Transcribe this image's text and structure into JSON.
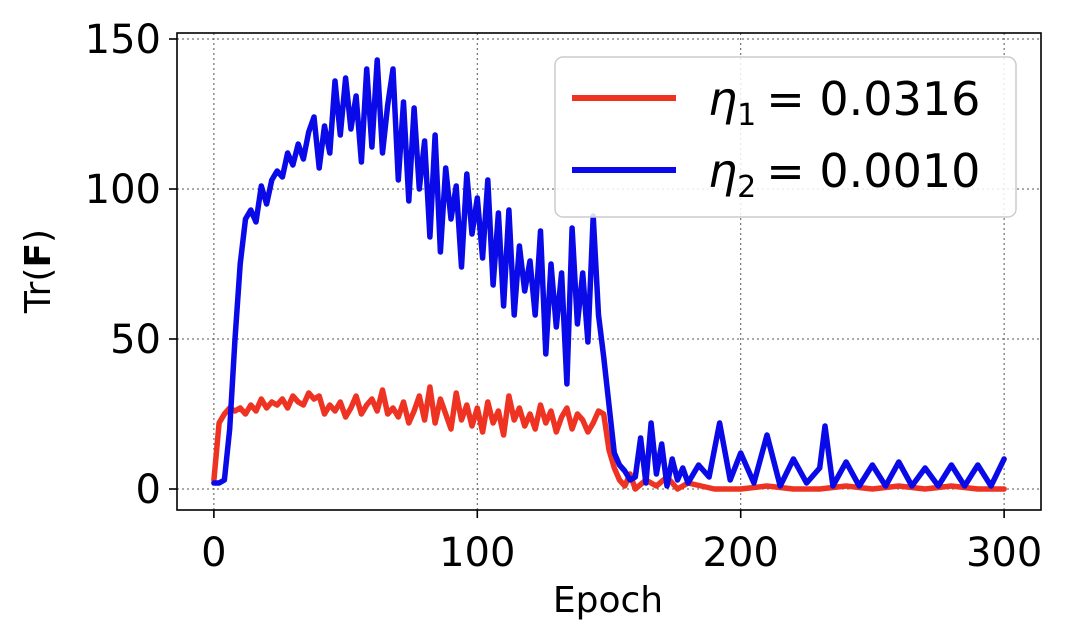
{
  "chart_data": {
    "type": "line",
    "xlabel": "Epoch",
    "ylabel_prefix": "Tr(",
    "ylabel_symbol": "F",
    "ylabel_suffix": ")",
    "xlim": [
      -14,
      314
    ],
    "ylim": [
      -7,
      152
    ],
    "xticks": [
      0,
      100,
      200,
      300
    ],
    "yticks": [
      0,
      50,
      100,
      150
    ],
    "grid": true,
    "legend_position": "top-right",
    "series": [
      {
        "name": "η1 = 0.0316",
        "legend_symbol": "η",
        "legend_sub": "1",
        "legend_value": "= 0.0316",
        "color": "#ee3322",
        "x": [
          0,
          2,
          4,
          6,
          8,
          10,
          12,
          14,
          16,
          18,
          20,
          22,
          24,
          26,
          28,
          30,
          32,
          34,
          36,
          38,
          40,
          42,
          44,
          46,
          48,
          50,
          52,
          54,
          56,
          58,
          60,
          62,
          64,
          66,
          68,
          70,
          72,
          74,
          76,
          78,
          80,
          82,
          84,
          86,
          88,
          90,
          92,
          94,
          96,
          98,
          100,
          102,
          104,
          106,
          108,
          110,
          112,
          114,
          116,
          118,
          120,
          122,
          124,
          126,
          128,
          130,
          132,
          134,
          136,
          138,
          140,
          142,
          144,
          146,
          148,
          150,
          152,
          154,
          156,
          158,
          160,
          164,
          168,
          172,
          176,
          180,
          185,
          190,
          200,
          210,
          220,
          230,
          240,
          250,
          260,
          270,
          280,
          290,
          300
        ],
        "values": [
          3,
          22,
          25,
          27,
          26,
          27,
          25,
          28,
          26,
          30,
          27,
          29,
          28,
          30,
          27,
          31,
          29,
          28,
          32,
          30,
          31,
          25,
          28,
          26,
          29,
          24,
          27,
          31,
          25,
          28,
          30,
          26,
          33,
          25,
          27,
          24,
          29,
          22,
          26,
          31,
          23,
          34,
          22,
          30,
          25,
          20,
          32,
          23,
          28,
          21,
          27,
          19,
          29,
          22,
          26,
          18,
          31,
          23,
          27,
          21,
          25,
          20,
          28,
          22,
          26,
          19,
          24,
          27,
          20,
          25,
          23,
          19,
          22,
          26,
          25,
          13,
          7,
          3,
          1,
          5,
          0,
          3,
          1,
          4,
          0,
          2,
          1,
          0,
          0,
          1,
          0,
          0,
          1,
          0,
          1,
          0,
          1,
          0,
          0
        ]
      },
      {
        "name": "η2 = 0.0010",
        "legend_symbol": "η",
        "legend_sub": "2",
        "legend_value": "= 0.0010",
        "color": "#0a0ae8",
        "x": [
          0,
          2,
          4,
          6,
          8,
          10,
          12,
          14,
          16,
          18,
          20,
          22,
          24,
          26,
          28,
          30,
          32,
          34,
          36,
          38,
          40,
          42,
          44,
          46,
          48,
          50,
          52,
          54,
          56,
          58,
          60,
          62,
          64,
          66,
          68,
          70,
          72,
          74,
          76,
          78,
          80,
          82,
          84,
          86,
          88,
          90,
          92,
          94,
          96,
          98,
          100,
          102,
          104,
          106,
          108,
          110,
          112,
          114,
          116,
          118,
          120,
          122,
          124,
          126,
          128,
          130,
          132,
          134,
          136,
          138,
          140,
          142,
          144,
          146,
          148,
          150,
          152,
          154,
          156,
          158,
          160,
          162,
          164,
          166,
          168,
          170,
          172,
          174,
          176,
          178,
          180,
          184,
          188,
          192,
          196,
          200,
          205,
          210,
          215,
          220,
          225,
          230,
          232,
          235,
          240,
          245,
          250,
          255,
          260,
          265,
          270,
          275,
          280,
          285,
          290,
          295,
          300
        ],
        "values": [
          2,
          2,
          3,
          20,
          50,
          75,
          90,
          93,
          89,
          101,
          95,
          103,
          106,
          104,
          112,
          108,
          115,
          110,
          119,
          124,
          107,
          121,
          112,
          136,
          118,
          137,
          120,
          131,
          109,
          140,
          114,
          143,
          112,
          128,
          140,
          103,
          129,
          96,
          127,
          100,
          116,
          84,
          118,
          79,
          107,
          90,
          101,
          74,
          105,
          85,
          97,
          77,
          103,
          68,
          92,
          61,
          93,
          58,
          81,
          66,
          76,
          58,
          86,
          45,
          75,
          54,
          72,
          35,
          87,
          55,
          72,
          49,
          91,
          58,
          44,
          28,
          12,
          8,
          6,
          3,
          4,
          17,
          2,
          22,
          5,
          15,
          1,
          10,
          3,
          7,
          2,
          8,
          4,
          22,
          3,
          12,
          2,
          18,
          1,
          10,
          2,
          7,
          21,
          1,
          9,
          1,
          8,
          1,
          9,
          1,
          7,
          1,
          8,
          1,
          8,
          1,
          10
        ]
      }
    ]
  }
}
